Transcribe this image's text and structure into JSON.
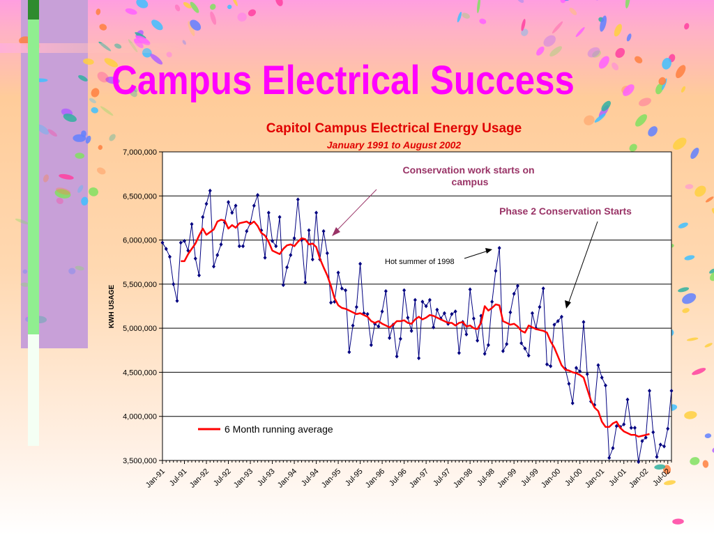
{
  "slide": {
    "title": "Campus Electrical Success"
  },
  "colors": {
    "title": "#ff00ff",
    "chart_title": "#e00000",
    "series": "#000080",
    "average": "#ff0000",
    "annotation": "#993366"
  },
  "chart_data": {
    "type": "line",
    "title": "Capitol Campus Electrical Energy Usage",
    "subtitle": "January 1991 to August 2002",
    "ylabel": "KWH USAGE",
    "xlabel": "",
    "ylim": [
      3500000,
      7000000
    ],
    "yticks": [
      "3,500,000",
      "4,000,000",
      "4,500,000",
      "5,000,000",
      "5,500,000",
      "6,000,000",
      "6,500,000",
      "7,000,000"
    ],
    "xticks": [
      "Jan-91",
      "Jul-91",
      "Jan-92",
      "Jul-92",
      "Jan-93",
      "Jul-93",
      "Jan-94",
      "Jul-94",
      "Jan-95",
      "Jul-95",
      "Jan-96",
      "Jul-96",
      "Jan-97",
      "Jul-97",
      "Jan-98",
      "Jul-98",
      "Jan-99",
      "Jul-99",
      "Jan-00",
      "Jul-00",
      "Jan-01",
      "Jul-01",
      "Jan-02",
      "Jul-02"
    ],
    "grid": true,
    "legend_position": "bottom-left",
    "x_start": "Jan-91",
    "series": [
      {
        "name": "",
        "marker": "diamond",
        "values": [
          5970000,
          5900000,
          5810000,
          5500000,
          5310000,
          5970000,
          5990000,
          5880000,
          6180000,
          5790000,
          5600000,
          6260000,
          6410000,
          6560000,
          5700000,
          5830000,
          5950000,
          6200000,
          6430000,
          6310000,
          6390000,
          5930000,
          5930000,
          6100000,
          6190000,
          6390000,
          6510000,
          6110000,
          5800000,
          6310000,
          5990000,
          5930000,
          6260000,
          5490000,
          5690000,
          5830000,
          6020000,
          6460000,
          6000000,
          5520000,
          6110000,
          5780000,
          6310000,
          5780000,
          6100000,
          5850000,
          5290000,
          5300000,
          5630000,
          5450000,
          5430000,
          4730000,
          5030000,
          5240000,
          5730000,
          5170000,
          5160000,
          4810000,
          5050000,
          5020000,
          5190000,
          5420000,
          4890000,
          5040000,
          4680000,
          4880000,
          5430000,
          5120000,
          4970000,
          5320000,
          4660000,
          5300000,
          5250000,
          5320000,
          5010000,
          5210000,
          5110000,
          5170000,
          5050000,
          5160000,
          5190000,
          4720000,
          5070000,
          4930000,
          5440000,
          5110000,
          4860000,
          5140000,
          4710000,
          4810000,
          5300000,
          5650000,
          5910000,
          4740000,
          4820000,
          5180000,
          5390000,
          5480000,
          4830000,
          4770000,
          4690000,
          5170000,
          5000000,
          5240000,
          5450000,
          4590000,
          4570000,
          5040000,
          5080000,
          5130000,
          4540000,
          4370000,
          4150000,
          4550000,
          4510000,
          5070000,
          4480000,
          4170000,
          4130000,
          4580000,
          4440000,
          4350000,
          3530000,
          3640000,
          3890000,
          3880000,
          3910000,
          4190000,
          3870000,
          3870000,
          3400000,
          3720000,
          3760000,
          4290000,
          3820000,
          3540000,
          3680000,
          3660000,
          3860000,
          4290000
        ]
      },
      {
        "name": "6 Month running average",
        "start_index": 5,
        "values": [
          5760000,
          5760000,
          5840000,
          5900000,
          5960000,
          6050000,
          6130000,
          6060000,
          6090000,
          6120000,
          6210000,
          6230000,
          6220000,
          6130000,
          6170000,
          6140000,
          6190000,
          6200000,
          6210000,
          6180000,
          6210000,
          6160000,
          6080000,
          6050000,
          5980000,
          5880000,
          5860000,
          5840000,
          5900000,
          5940000,
          5950000,
          5930000,
          5980000,
          6020000,
          6010000,
          5950000,
          5960000,
          5920000,
          5790000,
          5690000,
          5600000,
          5480000,
          5340000,
          5260000,
          5230000,
          5220000,
          5200000,
          5180000,
          5160000,
          5170000,
          5150000,
          5130000,
          5080000,
          5060000,
          5080000,
          5050000,
          5030000,
          5010000,
          5040000,
          5080000,
          5080000,
          5090000,
          5060000,
          5050000,
          5100000,
          5130000,
          5100000,
          5120000,
          5150000,
          5140000,
          5120000,
          5100000,
          5080000,
          5060000,
          5060000,
          5030000,
          5060000,
          5070000,
          5020000,
          5030000,
          5000000,
          4990000,
          5060000,
          5250000,
          5200000,
          5230000,
          5270000,
          5260000,
          5080000,
          5060000,
          5040000,
          5050000,
          5020000,
          4970000,
          4950000,
          5030000,
          5010000,
          4990000,
          4980000,
          4970000,
          4950000,
          4850000,
          4780000,
          4680000,
          4580000,
          4530000,
          4520000,
          4500000,
          4490000,
          4470000,
          4440000,
          4310000,
          4180000,
          4100000,
          4060000,
          3940000,
          3880000,
          3880000,
          3920000,
          3940000,
          3870000,
          3830000,
          3810000,
          3790000,
          3790000,
          3770000,
          3780000,
          3790000,
          3800000
        ]
      }
    ],
    "annotations": [
      {
        "text": "Conservation work starts on campus",
        "color": "#993366",
        "bold": true,
        "size": "medium"
      },
      {
        "text": "Phase 2 Conservation Starts",
        "color": "#993366",
        "bold": true,
        "size": "medium"
      },
      {
        "text": "Hot summer of 1998",
        "color": "#000000",
        "bold": false,
        "size": "small"
      }
    ]
  }
}
